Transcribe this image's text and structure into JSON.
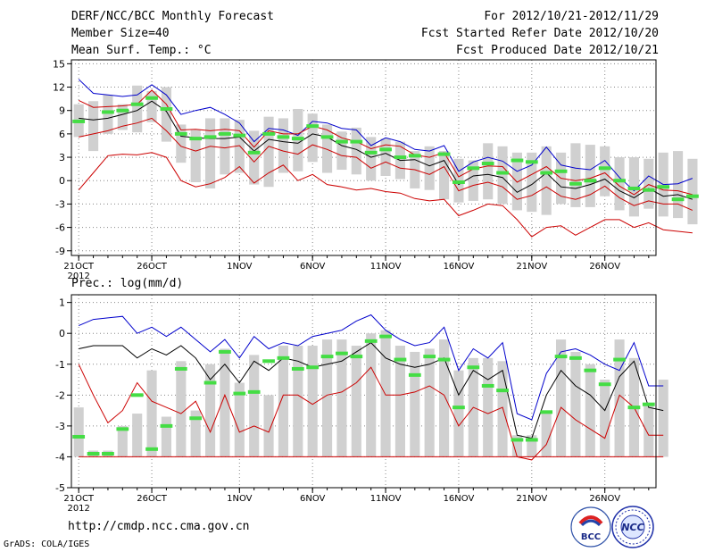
{
  "header": {
    "title": "DERF/NCC/BCC Monthly Forecast",
    "member_size": "Member Size=40",
    "variable": "Mean Surf. Temp.: °C",
    "period": "For 2012/10/21-2012/11/29",
    "start_date": "Fcst Started Refer Date 2012/10/20",
    "produced_date": "Fcst Produced Date 2012/10/21"
  },
  "footer": {
    "url": "http://cmdp.ncc.cma.gov.cn",
    "credit": "GrADS: COLA/IGES",
    "logo_bcc": "BCC",
    "logo_ncc": "NCC"
  },
  "colors": {
    "mean": "#000000",
    "max": "#0000cc",
    "min": "#cc0000",
    "box": "#d0d0d0",
    "marker": "#44dd44",
    "grid": "#888888"
  },
  "chart_data": [
    {
      "type": "line",
      "title": "Mean Surf. Temp.: °C",
      "x_labels": [
        {
          "day": 1,
          "label": "21OCT"
        },
        {
          "day": 6,
          "label": "26OCT"
        },
        {
          "day": 12,
          "label": "1NOV"
        },
        {
          "day": 17,
          "label": "6NOV"
        },
        {
          "day": 22,
          "label": "11NOV"
        },
        {
          "day": 27,
          "label": "16NOV"
        },
        {
          "day": 32,
          "label": "21NOV"
        },
        {
          "day": 37,
          "label": "26NOV"
        }
      ],
      "year_label": "2012",
      "x_range": [
        0.5,
        40.5
      ],
      "ylim": [
        -9.6,
        15.5
      ],
      "yticks": [
        -9,
        -6,
        -3,
        0,
        3,
        6,
        9,
        12,
        15
      ],
      "series": [
        {
          "name": "max",
          "values": [
            13.0,
            11.2,
            11.0,
            10.8,
            11.0,
            12.3,
            11.0,
            8.5,
            9.0,
            9.4,
            8.5,
            7.4,
            5.0,
            6.7,
            6.5,
            5.8,
            7.6,
            7.4,
            6.7,
            6.5,
            4.5,
            5.5,
            5.0,
            4.0,
            3.8,
            4.5,
            1.2,
            2.4,
            3.0,
            2.5,
            1.2,
            2.0,
            4.3,
            2.0,
            1.6,
            1.4,
            2.6,
            0.4,
            -1.3,
            0.6,
            -0.5,
            -0.4,
            0.3
          ]
        },
        {
          "name": "mean",
          "values": [
            8.0,
            7.8,
            8.0,
            8.5,
            9.0,
            10.2,
            8.9,
            5.7,
            5.5,
            5.4,
            5.4,
            5.6,
            3.8,
            5.3,
            5.0,
            4.8,
            6.0,
            5.6,
            4.5,
            4.0,
            3.0,
            3.5,
            2.6,
            2.7,
            1.9,
            2.6,
            -0.5,
            0.6,
            0.8,
            0.4,
            -1.5,
            -0.5,
            1.0,
            -0.8,
            -1.0,
            -0.5,
            0.2,
            -1.3,
            -2.2,
            -1.0,
            -2.0,
            -1.8,
            -2.4
          ]
        },
        {
          "name": "upper",
          "values": [
            10.3,
            9.4,
            9.5,
            9.6,
            9.8,
            11.6,
            9.8,
            6.5,
            6.6,
            6.4,
            6.6,
            6.4,
            4.3,
            6.4,
            6.0,
            6.0,
            7.0,
            6.5,
            5.5,
            5.0,
            4.1,
            4.6,
            4.4,
            3.3,
            3.0,
            3.6,
            0.5,
            1.5,
            1.9,
            1.8,
            -0.2,
            0.8,
            1.8,
            0.3,
            0.0,
            0.3,
            1.0,
            -0.7,
            -1.8,
            -0.5,
            -1.2,
            -1.3,
            -1.8
          ]
        },
        {
          "name": "lower",
          "values": [
            5.6,
            6.0,
            6.4,
            7.0,
            7.4,
            8.0,
            6.4,
            4.4,
            3.8,
            4.4,
            4.2,
            4.5,
            2.4,
            4.4,
            3.8,
            3.4,
            4.6,
            4.0,
            3.2,
            3.0,
            1.6,
            2.4,
            1.6,
            1.4,
            0.8,
            1.8,
            -1.3,
            -0.6,
            -0.2,
            -0.8,
            -2.4,
            -1.9,
            -0.8,
            -2.0,
            -2.4,
            -1.8,
            -0.7,
            -2.2,
            -3.2,
            -2.6,
            -3.0,
            -3.0,
            -3.8
          ]
        },
        {
          "name": "min",
          "values": [
            -1.2,
            1.0,
            3.2,
            3.4,
            3.3,
            3.6,
            3.0,
            0.0,
            -0.8,
            -0.4,
            0.4,
            1.8,
            -0.3,
            1.0,
            2.0,
            0.0,
            0.8,
            -0.5,
            -0.8,
            -1.2,
            -1.0,
            -1.4,
            -1.6,
            -2.3,
            -2.6,
            -2.4,
            -4.5,
            -3.8,
            -3.0,
            -3.2,
            -5.0,
            -7.2,
            -6.0,
            -5.8,
            -7.0,
            -6.0,
            -5.0,
            -5.0,
            -6.0,
            -5.4,
            -6.3,
            -6.5,
            -6.7
          ]
        }
      ],
      "boxes": [
        [
          5.6,
          9.8
        ],
        [
          3.8,
          10.2
        ],
        [
          6.0,
          11.0
        ],
        [
          6.5,
          9.8
        ],
        [
          6.2,
          12.2
        ],
        [
          7.5,
          11.5
        ],
        [
          5.0,
          12.0
        ],
        [
          2.3,
          7.2
        ],
        [
          -0.2,
          6.5
        ],
        [
          -1.0,
          8.0
        ],
        [
          0.8,
          8.0
        ],
        [
          1.0,
          7.8
        ],
        [
          -0.5,
          6.4
        ],
        [
          -0.8,
          8.2
        ],
        [
          1.0,
          8.0
        ],
        [
          1.2,
          9.2
        ],
        [
          2.4,
          8.6
        ],
        [
          1.0,
          7.2
        ],
        [
          1.4,
          6.3
        ],
        [
          0.8,
          6.8
        ],
        [
          0.0,
          5.6
        ],
        [
          0.6,
          5.4
        ],
        [
          0.2,
          5.0
        ],
        [
          -1.0,
          3.8
        ],
        [
          -1.2,
          4.4
        ],
        [
          -2.4,
          3.8
        ],
        [
          -2.8,
          2.8
        ],
        [
          -2.6,
          2.6
        ],
        [
          -2.4,
          4.8
        ],
        [
          -3.0,
          4.4
        ],
        [
          -3.8,
          3.6
        ],
        [
          -4.0,
          3.6
        ],
        [
          -4.4,
          4.4
        ],
        [
          -3.0,
          3.6
        ],
        [
          -3.4,
          4.8
        ],
        [
          -3.4,
          4.6
        ],
        [
          -2.0,
          4.4
        ],
        [
          -3.8,
          3.0
        ],
        [
          -4.6,
          3.0
        ],
        [
          -3.6,
          2.8
        ],
        [
          -4.6,
          3.6
        ],
        [
          -4.8,
          3.8
        ],
        [
          -5.6,
          2.8
        ]
      ],
      "markers": [
        7.6,
        null,
        8.8,
        9.0,
        9.8,
        10.6,
        9.2,
        6.0,
        5.4,
        5.6,
        6.0,
        5.8,
        3.6,
        6.0,
        5.6,
        5.4,
        7.0,
        5.6,
        5.0,
        5.0,
        3.6,
        4.0,
        3.0,
        3.2,
        null,
        3.4,
        -0.2,
        1.6,
        2.2,
        1.0,
        2.6,
        2.4,
        1.0,
        1.2,
        -0.4,
        0.0,
        1.6,
        0.0,
        -1.0,
        -1.2,
        -0.8,
        -2.4,
        -2.0
      ]
    },
    {
      "type": "line",
      "title": "Prec.: log(mm/d)",
      "x_labels": [
        {
          "day": 1,
          "label": "21OCT"
        },
        {
          "day": 6,
          "label": "26OCT"
        },
        {
          "day": 12,
          "label": "1NOV"
        },
        {
          "day": 17,
          "label": "6NOV"
        },
        {
          "day": 22,
          "label": "11NOV"
        },
        {
          "day": 27,
          "label": "16NOV"
        },
        {
          "day": 32,
          "label": "21NOV"
        },
        {
          "day": 37,
          "label": "26NOV"
        }
      ],
      "year_label": "2012",
      "x_range": [
        0.5,
        40.5
      ],
      "ylim": [
        -5.0,
        1.25
      ],
      "yticks": [
        -5,
        -4,
        -3,
        -2,
        -1,
        0,
        1
      ],
      "series": [
        {
          "name": "max",
          "values": [
            0.25,
            0.45,
            0.5,
            0.55,
            0.0,
            0.2,
            -0.1,
            0.2,
            -0.2,
            -0.6,
            -0.2,
            -0.8,
            -0.1,
            -0.5,
            -0.3,
            -0.4,
            -0.1,
            0.0,
            0.1,
            0.4,
            0.6,
            0.1,
            -0.2,
            -0.4,
            -0.3,
            0.2,
            -1.2,
            -0.5,
            -0.8,
            -0.3,
            -2.6,
            -2.8,
            -1.3,
            -0.6,
            -0.5,
            -0.7,
            -1.0,
            -1.2,
            -0.3,
            -1.7,
            -1.7
          ]
        },
        {
          "name": "mean",
          "values": [
            -0.5,
            -0.4,
            -0.4,
            -0.4,
            -0.8,
            -0.5,
            -0.7,
            -0.4,
            -0.8,
            -1.5,
            -1.0,
            -1.6,
            -0.9,
            -1.2,
            -0.8,
            -0.9,
            -1.1,
            -1.0,
            -0.9,
            -0.6,
            -0.3,
            -0.8,
            -1.0,
            -1.1,
            -1.0,
            -0.8,
            -2.0,
            -1.2,
            -1.5,
            -1.2,
            -3.3,
            -3.4,
            -2.0,
            -1.2,
            -1.7,
            -2.0,
            -2.5,
            -1.4,
            -0.9,
            -2.4,
            -2.5
          ]
        },
        {
          "name": "min",
          "values": [
            -1.0,
            -2.0,
            -2.9,
            -2.5,
            -1.6,
            -2.2,
            -2.4,
            -2.6,
            -2.2,
            -3.2,
            -2.0,
            -3.2,
            -3.0,
            -3.2,
            -2.0,
            -2.0,
            -2.3,
            -2.0,
            -1.9,
            -1.6,
            -1.1,
            -2.0,
            -2.0,
            -1.9,
            -1.7,
            -2.0,
            -3.0,
            -2.4,
            -2.6,
            -2.4,
            -4.0,
            -4.1,
            -3.6,
            -2.4,
            -2.8,
            -3.1,
            -3.4,
            -2.0,
            -2.4,
            -3.3,
            -3.3
          ]
        },
        {
          "name": "floor",
          "values": [
            -4.0,
            -4.0,
            -4.0,
            -4.0,
            -4.0,
            -4.0,
            -4.0,
            -4.0,
            -4.0,
            -4.0,
            -4.0,
            -4.0,
            -4.0,
            -4.0,
            -4.0,
            -4.0,
            -4.0,
            -4.0,
            -4.0,
            -4.0,
            -4.0,
            -4.0,
            -4.0,
            -4.0,
            -4.0,
            -4.0,
            -4.0,
            -4.0,
            -4.0,
            -4.0,
            -4.0,
            -4.0,
            -4.0,
            -4.0,
            -4.0,
            -4.0,
            -4.0,
            -4.0,
            -4.0,
            -4.0,
            -4.0
          ]
        }
      ],
      "boxes": [
        [
          -4.0,
          -2.4
        ],
        [
          -4.0,
          -3.8
        ],
        [
          -4.0,
          -3.8
        ],
        [
          -4.0,
          -3.0
        ],
        [
          -4.0,
          -2.6
        ],
        [
          -4.0,
          -1.2
        ],
        [
          -4.0,
          -2.7
        ],
        [
          -4.0,
          -0.9
        ],
        [
          -4.0,
          -2.5
        ],
        [
          -4.0,
          -1.0
        ],
        [
          -4.0,
          -0.5
        ],
        [
          -4.0,
          -1.6
        ],
        [
          -4.0,
          -0.7
        ],
        [
          -4.0,
          -2.0
        ],
        [
          -4.0,
          -0.4
        ],
        [
          -4.0,
          -0.4
        ],
        [
          -4.0,
          -0.4
        ],
        [
          -4.0,
          -0.2
        ],
        [
          -4.0,
          -0.2
        ],
        [
          -4.0,
          -0.4
        ],
        [
          -4.0,
          0.0
        ],
        [
          -4.0,
          0.1
        ],
        [
          -4.0,
          -0.4
        ],
        [
          -4.0,
          -0.6
        ],
        [
          -4.0,
          -0.5
        ],
        [
          -4.0,
          -0.2
        ],
        [
          -4.0,
          -1.2
        ],
        [
          -4.0,
          -0.8
        ],
        [
          -4.0,
          -0.8
        ],
        [
          -4.0,
          -0.9
        ],
        [
          -4.0,
          -3.3
        ],
        [
          -4.0,
          -3.3
        ],
        [
          -4.0,
          -2.6
        ],
        [
          -4.0,
          -0.2
        ],
        [
          -4.0,
          -0.6
        ],
        [
          -4.0,
          -1.0
        ],
        [
          -4.0,
          -1.5
        ],
        [
          -4.0,
          -0.2
        ],
        [
          -4.0,
          -0.8
        ],
        [
          -4.0,
          -2.3
        ],
        [
          -4.0,
          -1.5
        ]
      ],
      "markers": [
        -3.35,
        -3.9,
        -3.9,
        -3.1,
        -2.0,
        -3.75,
        -3.0,
        -1.15,
        -2.75,
        -1.6,
        -0.6,
        -1.95,
        -1.9,
        -0.9,
        -0.8,
        -1.15,
        -1.1,
        -0.75,
        -0.65,
        -0.75,
        -0.25,
        -0.1,
        -0.85,
        -1.35,
        -0.75,
        -0.85,
        -2.4,
        -1.1,
        -1.7,
        -1.85,
        -3.45,
        -3.45,
        -2.55,
        -0.75,
        -0.8,
        -1.2,
        -1.65,
        -0.85,
        -2.4,
        -2.3,
        null
      ]
    }
  ]
}
